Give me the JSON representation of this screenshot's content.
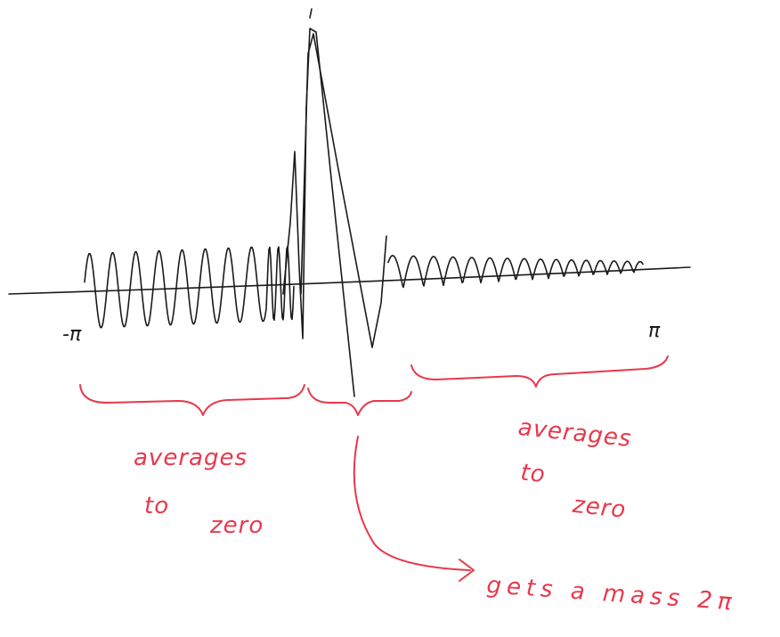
{
  "axis": {
    "left_label": "-π",
    "right_label": "π"
  },
  "annotations": [
    {
      "lines": [
        "averages",
        "to",
        "zero"
      ]
    },
    {
      "lines": [
        "averages",
        "to",
        "zero"
      ]
    },
    {
      "text": "gets a mass 2π"
    }
  ]
}
